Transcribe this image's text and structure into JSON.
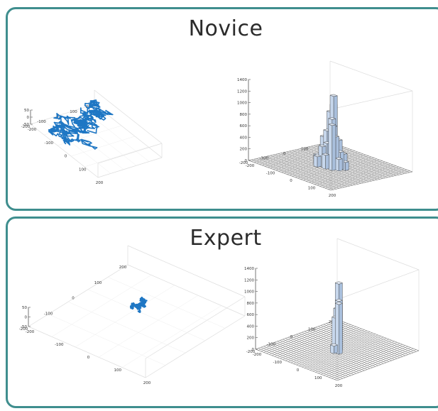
{
  "panels": {
    "novice": {
      "title": "Novice"
    },
    "expert": {
      "title": "Expert"
    }
  },
  "colors": {
    "panel_border": "#3f8e8e",
    "trajectory": "#1f77c4",
    "bar_face": "#c7d7ec",
    "bar_edge": "#333333",
    "grid": "#dddddd"
  },
  "chart_data": [
    {
      "id": "novice-trajectory",
      "type": "scatter",
      "title": "",
      "z_ticks": [
        "50",
        "0",
        "-50"
      ],
      "y_ticks": [
        "200",
        "100",
        "0",
        "-100",
        "-200"
      ],
      "x_ticks": [
        "-200",
        "-100",
        "0",
        "100",
        "200"
      ],
      "xlim": [
        -250,
        250
      ],
      "ylim": [
        -250,
        250
      ],
      "zlim": [
        -60,
        60
      ],
      "spread": 0.8,
      "points": 520
    },
    {
      "id": "novice-histogram",
      "type": "bar",
      "title": "",
      "z_ticks": [
        "1400",
        "1200",
        "1000",
        "800",
        "600",
        "400",
        "200",
        "0"
      ],
      "y_ticks": [
        "200",
        "100",
        "0",
        "-100",
        "-200"
      ],
      "x_ticks": [
        "-200",
        "-100",
        "0",
        "100",
        "200"
      ],
      "zlim": [
        0,
        1400
      ],
      "bars": [
        {
          "x": -30,
          "y": 30,
          "value": 900
        },
        {
          "x": -20,
          "y": 40,
          "value": 1020
        },
        {
          "x": 0,
          "y": 20,
          "value": 1210
        },
        {
          "x": 10,
          "y": 10,
          "value": 700
        },
        {
          "x": 20,
          "y": -10,
          "value": 850
        },
        {
          "x": 30,
          "y": 0,
          "value": 550
        },
        {
          "x": -10,
          "y": -10,
          "value": 620
        },
        {
          "x": -40,
          "y": 0,
          "value": 480
        },
        {
          "x": 40,
          "y": -30,
          "value": 780
        },
        {
          "x": 0,
          "y": -20,
          "value": 420
        },
        {
          "x": -20,
          "y": -30,
          "value": 350
        },
        {
          "x": 50,
          "y": 10,
          "value": 300
        },
        {
          "x": -50,
          "y": 20,
          "value": 260
        },
        {
          "x": 20,
          "y": 30,
          "value": 460
        },
        {
          "x": 60,
          "y": -10,
          "value": 200
        },
        {
          "x": -60,
          "y": -20,
          "value": 160
        },
        {
          "x": 10,
          "y": -40,
          "value": 240
        },
        {
          "x": -30,
          "y": -50,
          "value": 180
        },
        {
          "x": 70,
          "y": 20,
          "value": 140
        },
        {
          "x": 30,
          "y": 50,
          "value": 220
        }
      ]
    },
    {
      "id": "expert-trajectory",
      "type": "scatter",
      "title": "",
      "z_ticks": [
        "50",
        "0",
        "-50"
      ],
      "y_ticks": [
        "200",
        "100",
        "0",
        "-100",
        "-200"
      ],
      "x_ticks": [
        "-200",
        "-100",
        "0",
        "100",
        "200"
      ],
      "xlim": [
        -250,
        250
      ],
      "ylim": [
        -250,
        250
      ],
      "zlim": [
        -60,
        60
      ],
      "spread": 0.15,
      "points": 140
    },
    {
      "id": "expert-histogram",
      "type": "bar",
      "title": "",
      "z_ticks": [
        "1400",
        "1200",
        "1000",
        "800",
        "600",
        "400",
        "200",
        "0"
      ],
      "y_ticks": [
        "200",
        "100",
        "0",
        "-100",
        "-200"
      ],
      "x_ticks": [
        "-200",
        "-100",
        "0",
        "100",
        "200"
      ],
      "zlim": [
        0,
        1400
      ],
      "bars": [
        {
          "x": 0,
          "y": 10,
          "value": 1150
        },
        {
          "x": 10,
          "y": 0,
          "value": 870
        },
        {
          "x": -20,
          "y": 20,
          "value": 680
        },
        {
          "x": 30,
          "y": -20,
          "value": 860
        },
        {
          "x": -10,
          "y": 0,
          "value": 560
        },
        {
          "x": 10,
          "y": -30,
          "value": 130
        }
      ]
    }
  ]
}
